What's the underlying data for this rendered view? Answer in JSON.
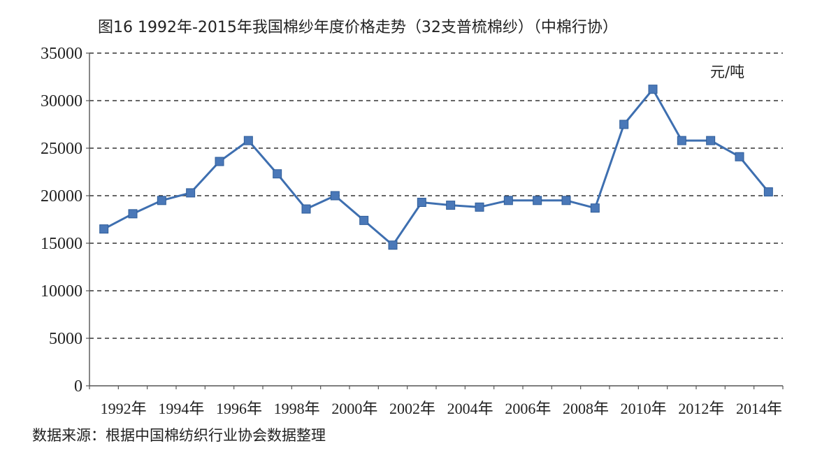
{
  "chart_data": {
    "type": "line",
    "title": "图16   1992年-2015年我国棉纱年度价格走势（32支普梳棉纱）（中棉行协）",
    "unit_label": "元/吨",
    "source": "数据来源：根据中国棉纺织行业协会数据整理",
    "ylim": [
      0,
      35000
    ],
    "yticks": [
      "0",
      "5000",
      "10000",
      "15000",
      "20000",
      "25000",
      "30000",
      "35000"
    ],
    "x_tick_labels": [
      "1992年",
      "1994年",
      "1996年",
      "1998年",
      "2000年",
      "2002年",
      "2004年",
      "2006年",
      "2008年",
      "2010年",
      "2012年",
      "2014年"
    ],
    "x": [
      1992,
      1993,
      1994,
      1995,
      1996,
      1997,
      1998,
      1999,
      2000,
      2001,
      2002,
      2003,
      2004,
      2005,
      2006,
      2007,
      2008,
      2009,
      2010,
      2011,
      2012,
      2013,
      2014,
      2015
    ],
    "series": [
      {
        "values": [
          16500,
          18100,
          19500,
          20300,
          23600,
          25800,
          22300,
          18600,
          20000,
          17400,
          14800,
          19300,
          19000,
          18800,
          19500,
          19500,
          19500,
          18700,
          27500,
          31200,
          25800,
          25800,
          24100,
          20400
        ]
      }
    ],
    "grid": "horizontal dashed",
    "colors": {
      "line": "#3e6fb0",
      "marker": "#4a78b8",
      "grid": "#333333",
      "axis": "#555555"
    }
  }
}
